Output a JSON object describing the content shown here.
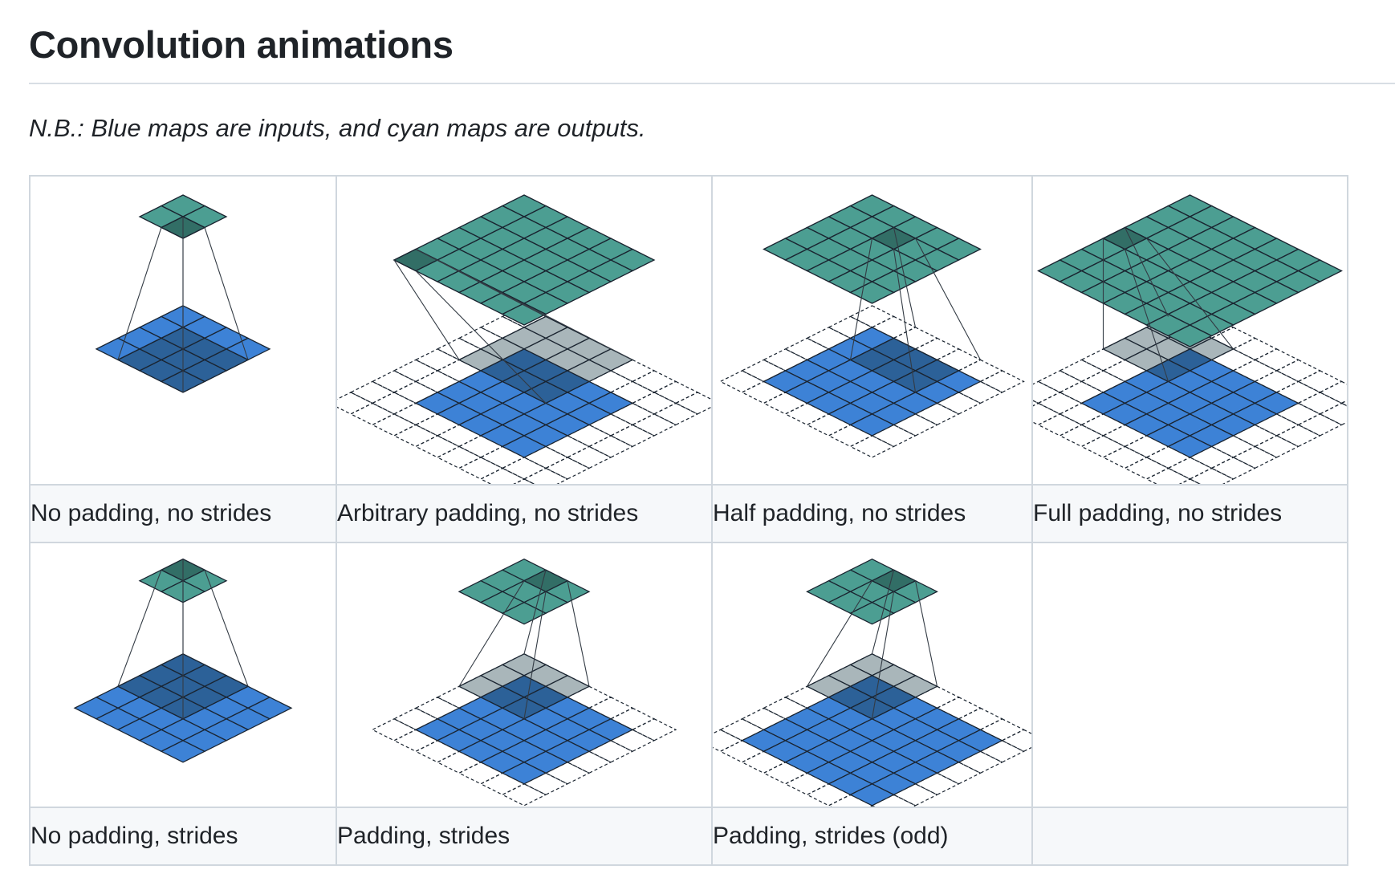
{
  "page": {
    "heading": "Convolution animations",
    "note": "N.B.: Blue maps are inputs, and cyan maps are outputs."
  },
  "colors": {
    "input_blue": "#3d82d6",
    "input_dark": "#2a5c8e",
    "output_teal": "#4c9e92",
    "output_dark": "#326e66",
    "padding_gray": "#a9b6ba",
    "grid_line": "#1a2430"
  },
  "cells": [
    {
      "caption": "No padding, no strides",
      "icon": "conv-no-padding-no-strides-diagram",
      "input": 4,
      "pad": 0,
      "output": 2,
      "window": 3,
      "shade": [
        1,
        1
      ],
      "out_shade": [
        1,
        1
      ],
      "gray_pad": false
    },
    {
      "caption": "Arbitrary padding, no strides",
      "icon": "conv-arbitrary-padding-diagram",
      "input": 5,
      "pad": 2,
      "output": 6,
      "window": 4,
      "shade": [
        1,
        0
      ],
      "out_shade": [
        0,
        5
      ],
      "gray_pad": true
    },
    {
      "caption": "Half padding, no strides",
      "icon": "conv-half-padding-diagram",
      "input": 5,
      "pad": 1,
      "output": 5,
      "window": 3,
      "shade": [
        2,
        0
      ],
      "out_shade": [
        2,
        1
      ],
      "gray_pad": false
    },
    {
      "caption": "Full padding, no strides",
      "icon": "conv-full-padding-diagram",
      "input": 5,
      "pad": 2,
      "output": 7,
      "window": 3,
      "shade": [
        0,
        1
      ],
      "out_shade": [
        0,
        3
      ],
      "gray_pad": true
    },
    {
      "caption": "No padding, strides",
      "icon": "conv-no-padding-strides-diagram",
      "input": 5,
      "pad": 0,
      "output": 2,
      "window": 3,
      "shade": [
        0,
        0
      ],
      "out_shade": [
        0,
        0
      ],
      "gray_pad": false
    },
    {
      "caption": "Padding, strides",
      "icon": "conv-padding-strides-diagram",
      "input": 5,
      "pad": 1,
      "output": 3,
      "window": 3,
      "shade": [
        0,
        0
      ],
      "out_shade": [
        1,
        0
      ],
      "gray_pad": true
    },
    {
      "caption": "Padding, strides (odd)",
      "icon": "conv-padding-strides-odd-diagram",
      "input": 6,
      "pad": 1,
      "output": 3,
      "window": 3,
      "shade": [
        0,
        0
      ],
      "out_shade": [
        1,
        0
      ],
      "gray_pad": true
    },
    {
      "caption": "",
      "icon": "",
      "input": 0
    }
  ]
}
